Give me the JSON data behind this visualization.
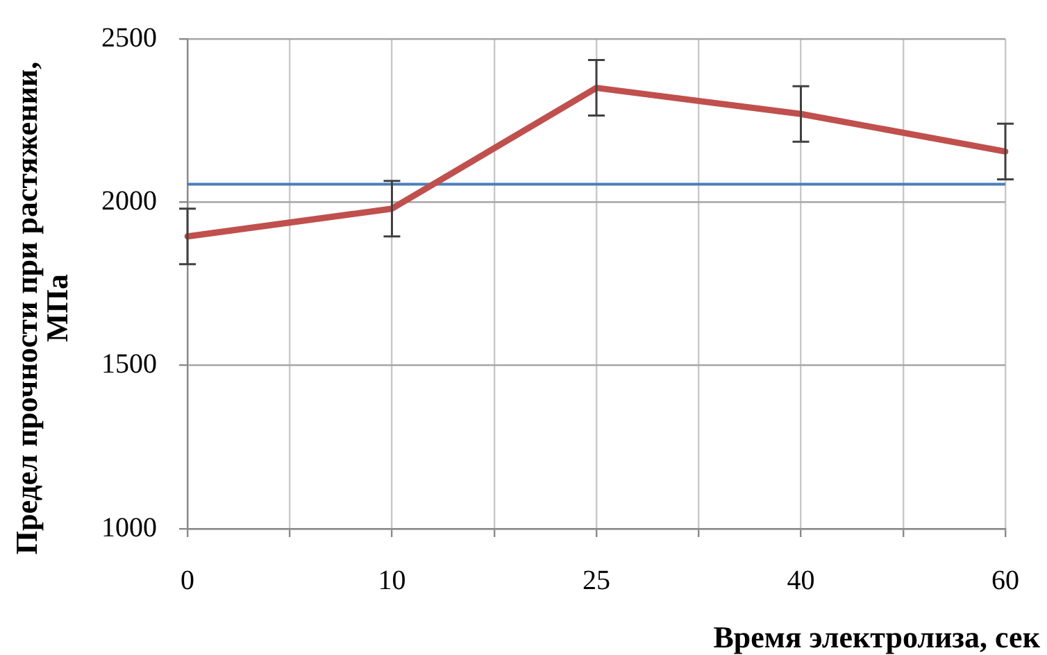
{
  "chart_data": {
    "type": "line",
    "xlabel": "Время электролиза, сек",
    "ylabel": "Предел прочности при растяжении, МПа",
    "categories": [
      "0",
      "10",
      "25",
      "40",
      "60"
    ],
    "series": [
      {
        "color": "#c0504d",
        "values": [
          1895,
          1980,
          2350,
          2270,
          2155
        ],
        "errors": [
          85,
          85,
          85,
          85,
          85
        ]
      }
    ],
    "ylim": [
      1000,
      2500
    ],
    "yticks": [
      1000,
      1500,
      2000,
      2500
    ],
    "grid": true,
    "marker": "none",
    "line_style": "solid",
    "ref_lines": [
      {
        "axis": "y",
        "value": 2055,
        "color": "#4a7ebb"
      }
    ]
  }
}
